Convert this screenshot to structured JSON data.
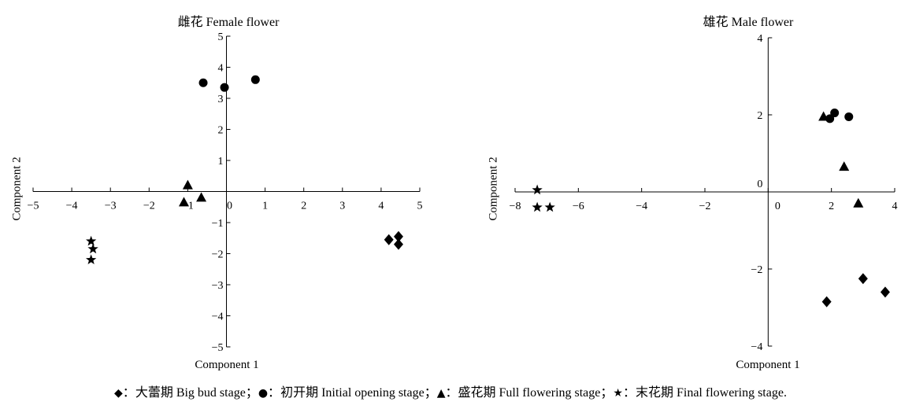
{
  "chart_data": [
    {
      "type": "scatter",
      "title": "雌花 Female flower",
      "xlabel": "Component 1",
      "ylabel": "Component 2",
      "xlim": [
        -5,
        5
      ],
      "ylim": [
        -5,
        5
      ],
      "xticks": [
        -5,
        -4,
        -3,
        -2,
        -1,
        0,
        1,
        2,
        3,
        4,
        5
      ],
      "xtick_labels": [
        "−5",
        "−4",
        "−3",
        "−2",
        "−1",
        "0",
        "1",
        "2",
        "3",
        "4",
        "5"
      ],
      "yticks": [
        5,
        4,
        3,
        2,
        1,
        -1,
        -2,
        -3,
        -4,
        -5
      ],
      "ytick_labels": [
        "5",
        "4",
        "3",
        "2",
        "1",
        "−1",
        "−2",
        "−3",
        "−4",
        "−5"
      ],
      "grid": false,
      "legend_position": "bottom",
      "series": [
        {
          "name": "大蕾期 Big bud stage",
          "marker": "diamond",
          "symbol": "◆",
          "points": [
            [
              4.2,
              -1.55
            ],
            [
              4.45,
              -1.45
            ],
            [
              4.45,
              -1.7
            ]
          ]
        },
        {
          "name": "初开期 Initial opening stage",
          "marker": "circle",
          "symbol": "●",
          "points": [
            [
              -0.6,
              3.5
            ],
            [
              -0.05,
              3.35
            ],
            [
              0.75,
              3.6
            ]
          ]
        },
        {
          "name": "盛花期 Full flowering stage",
          "marker": "triangle",
          "symbol": "▲",
          "points": [
            [
              -1.0,
              0.2
            ],
            [
              -1.1,
              -0.35
            ],
            [
              -0.65,
              -0.2
            ]
          ]
        },
        {
          "name": "末花期 Final flowering stage",
          "marker": "star",
          "symbol": "★",
          "points": [
            [
              -3.5,
              -1.6
            ],
            [
              -3.45,
              -1.85
            ],
            [
              -3.5,
              -2.2
            ]
          ]
        }
      ]
    },
    {
      "type": "scatter",
      "title": "雄花 Male flower",
      "xlabel": "Component 1",
      "ylabel": "Component 2",
      "xlim": [
        -8,
        4
      ],
      "ylim": [
        -4,
        4
      ],
      "xticks": [
        -8,
        -6,
        -4,
        -2,
        0,
        2,
        4
      ],
      "xtick_labels": [
        "−8",
        "−6",
        "−4",
        "−2",
        "0",
        "2",
        "4"
      ],
      "yticks": [
        4,
        2,
        0,
        -2,
        -4
      ],
      "ytick_labels": [
        "4",
        "2",
        "0",
        "−2",
        "−4"
      ],
      "grid": false,
      "legend_position": "bottom",
      "series": [
        {
          "name": "大蕾期 Big bud stage",
          "marker": "diamond",
          "symbol": "◆",
          "points": [
            [
              1.85,
              -2.85
            ],
            [
              3.0,
              -2.25
            ],
            [
              3.7,
              -2.6
            ]
          ]
        },
        {
          "name": "初开期 Initial opening stage",
          "marker": "circle",
          "symbol": "●",
          "points": [
            [
              1.95,
              1.9
            ],
            [
              2.1,
              2.05
            ],
            [
              2.55,
              1.95
            ]
          ]
        },
        {
          "name": "盛花期 Full flowering stage",
          "marker": "triangle",
          "symbol": "▲",
          "points": [
            [
              1.75,
              1.95
            ],
            [
              2.4,
              0.65
            ],
            [
              2.85,
              -0.3
            ]
          ]
        },
        {
          "name": "末花期 Final flowering stage",
          "marker": "star",
          "symbol": "★",
          "points": [
            [
              -7.3,
              0.05
            ],
            [
              -7.3,
              -0.4
            ],
            [
              -6.9,
              -0.4
            ]
          ]
        }
      ]
    }
  ],
  "legend": {
    "colon": "：",
    "separator": "；",
    "end": "."
  },
  "colors": {
    "marker": "#000000",
    "axis": "#000000",
    "background": "#ffffff"
  }
}
